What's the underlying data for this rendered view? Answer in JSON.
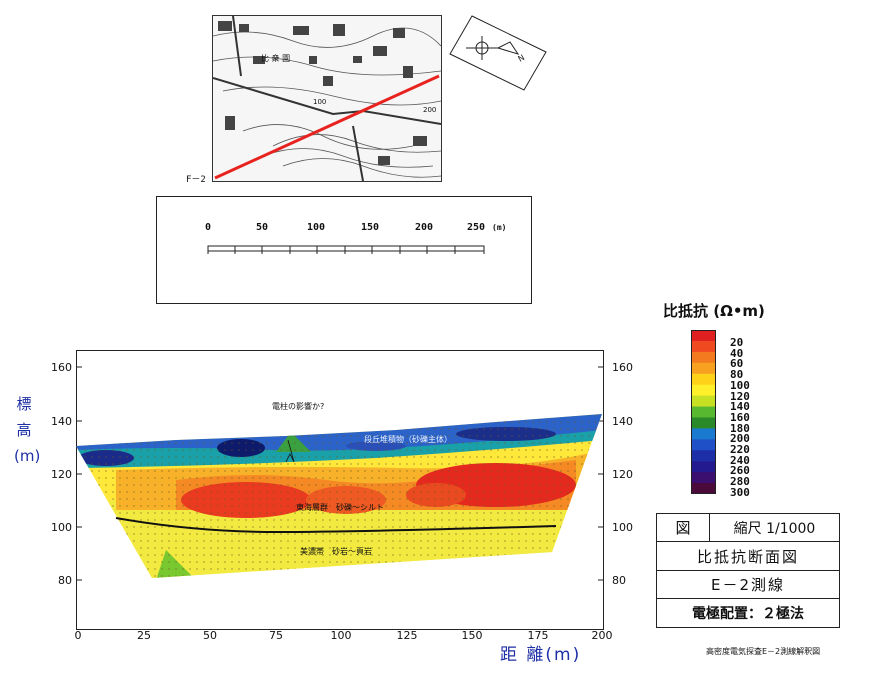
{
  "map": {
    "line_label": "F－2",
    "place_label": "比 衆 園",
    "contour_label": "100",
    "contour_label_2": "200",
    "north_glyph": "N"
  },
  "scale_bar": {
    "ticks": [
      "0",
      "50",
      "100",
      "150",
      "200",
      "250"
    ],
    "unit": "(m)"
  },
  "section": {
    "y_axis_label": "標高(m)",
    "y_ticks": [
      "160",
      "140",
      "120",
      "100",
      "80"
    ],
    "x_axis_label": "距 離(m)",
    "x_ticks": [
      "0",
      "25",
      "50",
      "75",
      "100",
      "125",
      "150",
      "175",
      "200"
    ],
    "annotations": {
      "pole": "電柱の影響か?",
      "upper": "段丘堆積物（砂礫主体）",
      "middle": "東海層群　砂礫～シルト",
      "lower": "美濃帯　砂岩～頁岩"
    }
  },
  "legend": {
    "title": "比抵抗 (Ω•m)",
    "labels": [
      "20",
      "40",
      "60",
      "80",
      "100",
      "120",
      "140",
      "160",
      "180",
      "200",
      "220",
      "240",
      "260",
      "280",
      "300"
    ],
    "colors": [
      "#e02020",
      "#f04a20",
      "#f47a20",
      "#f8a020",
      "#ffd21a",
      "#fff02a",
      "#c8e024",
      "#58b830",
      "#2a8a2a",
      "#1a7ad0",
      "#2050c8",
      "#1c2ea8",
      "#241a90",
      "#3a0f70",
      "#4a0a3a"
    ]
  },
  "title_block": {
    "fig": "図",
    "scale": "縮尺 1/1000",
    "name": "比抵抗断面図",
    "line": "E－2測線",
    "method": "電極配置：２極法"
  },
  "caption": "高密度電気探査E－2測線解釈図"
}
